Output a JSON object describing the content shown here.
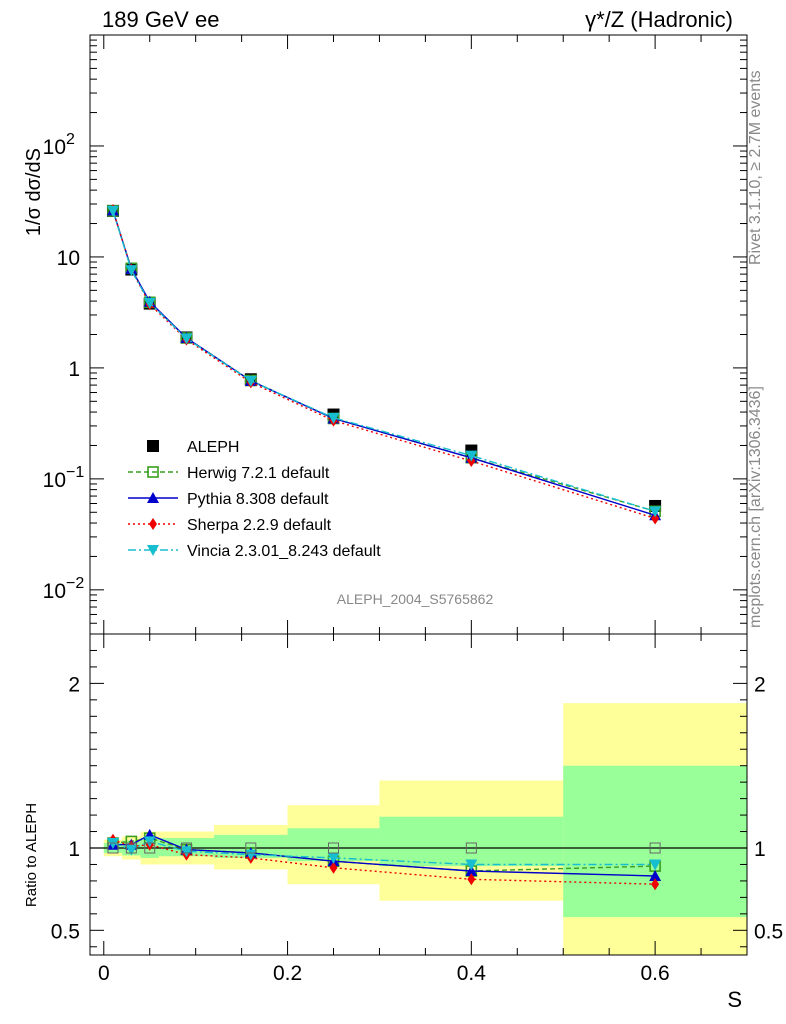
{
  "header": {
    "left": "189 GeV ee",
    "right": "γ*/Z (Hadronic)"
  },
  "side_text": {
    "rivet": "Rivet 3.1.10, ≥ 2.7M events",
    "mcplots": "mcplots.cern.ch [arXiv:1306.3436]"
  },
  "analysis_label": "ALEPH_2004_S5765862",
  "chart_data": [
    {
      "type": "line",
      "panel": "main",
      "ylabel": "1/σ  dσ/dS",
      "yscale": "log",
      "ylim": [
        0.004,
        1000
      ],
      "xlim": [
        -0.015,
        0.7
      ],
      "yticks": [
        {
          "v": 0.01,
          "label": "10",
          "exp": "−2"
        },
        {
          "v": 0.1,
          "label": "10",
          "exp": "−1"
        },
        {
          "v": 1,
          "label": "1",
          "exp": ""
        },
        {
          "v": 10,
          "label": "10",
          "exp": ""
        },
        {
          "v": 100,
          "label": "10",
          "exp": "2"
        }
      ],
      "x": [
        0.01,
        0.03,
        0.05,
        0.09,
        0.16,
        0.25,
        0.4,
        0.6
      ],
      "series": [
        {
          "name": "ALEPH",
          "color": "#000000",
          "marker": "square",
          "values": [
            26.0,
            7.7,
            3.8,
            1.88,
            0.79,
            0.38,
            0.18,
            0.057
          ]
        },
        {
          "name": "Herwig 7.2.1 default",
          "color": "#3a9e1e",
          "marker": "open-square",
          "dash": "5,3",
          "values": [
            26.0,
            7.9,
            3.9,
            1.86,
            0.77,
            0.35,
            0.155,
            0.051
          ]
        },
        {
          "name": "Pythia 8.308 default",
          "color": "#0000cc",
          "marker": "triangle-up",
          "dash": "",
          "values": [
            26.2,
            7.8,
            3.95,
            1.86,
            0.765,
            0.35,
            0.155,
            0.047
          ]
        },
        {
          "name": "Sherpa 2.2.9 default",
          "color": "#ee0000",
          "marker": "diamond",
          "dash": "2,3",
          "values": [
            26.5,
            7.7,
            3.75,
            1.8,
            0.74,
            0.335,
            0.145,
            0.044
          ]
        },
        {
          "name": "Vincia 2.3.01_8.243 default",
          "color": "#17becf",
          "marker": "triangle-down",
          "dash": "8,3,2,3",
          "values": [
            26.0,
            7.6,
            3.85,
            1.84,
            0.765,
            0.355,
            0.162,
            0.051
          ]
        }
      ]
    },
    {
      "type": "line",
      "panel": "ratio",
      "xlabel": "S",
      "ylabel": "Ratio to ALEPH",
      "ylim": [
        0.35,
        2.3
      ],
      "xlim": [
        -0.015,
        0.7
      ],
      "yticks": [
        0.5,
        1,
        2
      ],
      "xticks": [
        0,
        0.2,
        0.4,
        0.6
      ],
      "bins": [
        {
          "lo": 0.0,
          "hi": 0.02,
          "stat": [
            0.97,
            1.03
          ],
          "total": [
            0.95,
            1.05
          ]
        },
        {
          "lo": 0.02,
          "hi": 0.04,
          "stat": [
            0.955,
            1.045
          ],
          "total": [
            0.93,
            1.07
          ]
        },
        {
          "lo": 0.04,
          "hi": 0.06,
          "stat": [
            0.94,
            1.06
          ],
          "total": [
            0.9,
            1.1
          ]
        },
        {
          "lo": 0.06,
          "hi": 0.12,
          "stat": [
            0.95,
            1.06
          ],
          "total": [
            0.9,
            1.1
          ]
        },
        {
          "lo": 0.12,
          "hi": 0.2,
          "stat": [
            0.94,
            1.08
          ],
          "total": [
            0.87,
            1.14
          ]
        },
        {
          "lo": 0.2,
          "hi": 0.3,
          "stat": [
            0.92,
            1.12
          ],
          "total": [
            0.78,
            1.26
          ]
        },
        {
          "lo": 0.3,
          "hi": 0.5,
          "stat": [
            0.89,
            1.19
          ],
          "total": [
            0.68,
            1.41
          ]
        },
        {
          "lo": 0.5,
          "hi": 0.7,
          "stat": [
            0.58,
            1.5
          ],
          "total": [
            0.3,
            1.88
          ]
        }
      ],
      "series": [
        {
          "name": "Herwig 7.2.1 default",
          "values": [
            1.03,
            1.04,
            1.06,
            0.99,
            0.97,
            0.92,
            0.86,
            0.89
          ]
        },
        {
          "name": "Pythia 8.308 default",
          "values": [
            1.02,
            1.02,
            1.08,
            0.99,
            0.97,
            0.92,
            0.86,
            0.83
          ]
        },
        {
          "name": "Sherpa 2.2.9 default",
          "values": [
            1.05,
            1.01,
            1.02,
            0.96,
            0.94,
            0.88,
            0.81,
            0.78
          ]
        },
        {
          "name": "Vincia 2.3.01_8.243 default",
          "values": [
            1.03,
            0.99,
            1.04,
            0.98,
            0.96,
            0.94,
            0.9,
            0.9
          ]
        }
      ],
      "band_colors": {
        "stat": "#99ff99",
        "total": "#ffff99"
      }
    }
  ]
}
